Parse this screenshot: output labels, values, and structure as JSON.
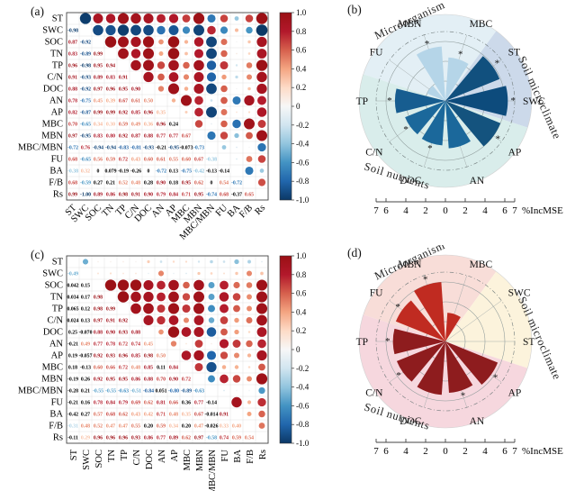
{
  "figure": {
    "panel_tags": {
      "a": "(a)",
      "b": "(b)",
      "c": "(c)",
      "d": "(d)"
    }
  },
  "diverging_stops": [
    "#0b3866",
    "#2166ac",
    "#4393c3",
    "#92c5de",
    "#d1e5f0",
    "#f7f7f7",
    "#fddbc7",
    "#f4a582",
    "#d6604d",
    "#b2182b",
    "#9a1014"
  ],
  "chart_data": [
    {
      "panel": "a",
      "type": "heatmap",
      "subtype": "pearson-correlation-matrix",
      "variables": [
        "ST",
        "SWC",
        "SOC",
        "TN",
        "TP",
        "C/N",
        "DOC",
        "AN",
        "AP",
        "MBC",
        "MBN",
        "MBC/MBN",
        "FU",
        "BA",
        "F/B",
        "Rs"
      ],
      "values_lower_triangle": [
        [],
        [
          "-0.98"
        ],
        [
          "0.87",
          "-0.92"
        ],
        [
          "0.83",
          "-0.89",
          "0.99"
        ],
        [
          "0.96",
          "-0.98",
          "0.95",
          "0.94"
        ],
        [
          "0.91",
          "-0.93",
          "0.89",
          "0.83",
          "0.91"
        ],
        [
          "0.88",
          "-0.92",
          "0.97",
          "0.96",
          "0.95",
          "0.90"
        ],
        [
          "0.78",
          "-0.75",
          "0.45",
          "0.39",
          "0.67",
          "0.61",
          "0.50"
        ],
        [
          "0.82",
          "-0.87",
          "0.99",
          "0.99",
          "0.92",
          "0.85",
          "0.96",
          "0.35"
        ],
        [
          "0.70",
          "-0.65",
          "0.34",
          "0.30",
          "0.59",
          "0.49",
          "0.36",
          "0.96",
          "0.24"
        ],
        [
          "0.97",
          "-0.95",
          "0.83",
          "0.80",
          "0.92",
          "0.87",
          "0.88",
          "0.77",
          "0.77",
          "0.67"
        ],
        [
          "-0.72",
          "0.76",
          "-0.94",
          "-0.94",
          "-0.83",
          "-0.81",
          "-0.93",
          "-0.21",
          "-0.95",
          "-0.073",
          "-0.73"
        ],
        [
          "0.68",
          "-0.65",
          "0.56",
          "0.59",
          "0.72",
          "0.43",
          "0.60",
          "0.61",
          "0.55",
          "0.60",
          "0.67",
          "-0.38"
        ],
        [
          "-0.38",
          "0.32",
          "0",
          "0.079",
          "-0.19",
          "-0.26",
          "0",
          "-0.72",
          "0.13",
          "-0.75",
          "-0.42",
          "-0.13",
          "-0.14"
        ],
        [
          "0.68",
          "-0.59",
          "0.27",
          "0.21",
          "0.52",
          "0.48",
          "0.28",
          "0.90",
          "0.18",
          "0.95",
          "0.62",
          "0",
          "0.54",
          "-0.72"
        ],
        [
          "0.99",
          "-1.00",
          "0.89",
          "0.86",
          "0.98",
          "0.91",
          "0.90",
          "0.79",
          "0.84",
          "0.71",
          "0.95",
          "-0.74",
          "0.68",
          "-0.37",
          "0.65"
        ]
      ],
      "not_significant_black_cells": [
        [
          9,
          8
        ],
        [
          11,
          7
        ],
        [
          11,
          9
        ],
        [
          13,
          2
        ],
        [
          13,
          3
        ],
        [
          13,
          4
        ],
        [
          13,
          5
        ],
        [
          13,
          6
        ],
        [
          13,
          8
        ],
        [
          13,
          11
        ],
        [
          13,
          12
        ],
        [
          14,
          2
        ],
        [
          14,
          3
        ],
        [
          14,
          6
        ],
        [
          14,
          8
        ],
        [
          14,
          11
        ],
        [
          15,
          13
        ]
      ],
      "colorbar_tick_labels": [
        "1.0",
        "0.8",
        "0.6",
        "0.4",
        "0.2",
        "0",
        "-0.2",
        "-0.4",
        "-0.6",
        "-0.8",
        "-1.0"
      ],
      "x_tick_rotation_deg": 45
    },
    {
      "panel": "b",
      "type": "bar",
      "subtype": "polar-rose",
      "axis_label": "%IncMSE",
      "radial_axis": {
        "tick_values": [
          -7,
          -6,
          -4,
          -2,
          0,
          2,
          4,
          6,
          7
        ],
        "tick_labels": [
          "7",
          "6",
          "4",
          "2",
          "0",
          "2",
          "4",
          "6",
          "7"
        ],
        "rmax": 7
      },
      "groups": [
        {
          "name": "Microorganism",
          "bg_color": "#e3eff5",
          "from_deg": 198,
          "to_deg": 306
        },
        {
          "name": "Soil microclimate",
          "bg_color": "#ccd9ea",
          "from_deg": 306,
          "to_deg": 378
        },
        {
          "name": "Soil nutrients",
          "bg_color": "#d9edeb",
          "from_deg": 18,
          "to_deg": 198
        }
      ],
      "wedges": [
        {
          "label": "SWC",
          "deg": 0,
          "value": 6.3,
          "color": "#0d4b7c",
          "significant": true
        },
        {
          "label": "AP",
          "deg": 36,
          "value": 6.0,
          "color": "#14537e",
          "significant": true
        },
        {
          "label": "AN",
          "deg": 72,
          "value": 4.8,
          "color": "#1b689b",
          "significant": false
        },
        {
          "label": "DOC",
          "deg": 108,
          "value": 4.5,
          "color": "#1b689b",
          "significant": true
        },
        {
          "label": "C/N",
          "deg": 144,
          "value": 4.4,
          "color": "#1b689b",
          "significant": true
        },
        {
          "label": "TP",
          "deg": 180,
          "value": 5.1,
          "color": "#175d90",
          "significant": true
        },
        {
          "label": "FU",
          "deg": 216,
          "value": 2.0,
          "color": "#b5d5e8",
          "significant": false
        },
        {
          "label": "MBN",
          "deg": 252,
          "value": 5.5,
          "color": "#b5d5e8",
          "significant": true
        },
        {
          "label": "MBC",
          "deg": 288,
          "value": 4.4,
          "color": "#b5d5e8",
          "significant": true
        },
        {
          "label": "ST",
          "deg": 324,
          "value": 5.9,
          "color": "#11507e",
          "significant": true
        }
      ]
    },
    {
      "panel": "c",
      "type": "heatmap",
      "subtype": "pearson-correlation-matrix",
      "variables": [
        "ST",
        "SWC",
        "SOC",
        "TN",
        "TP",
        "C/N",
        "DOC",
        "AN",
        "AP",
        "MBC",
        "MBN",
        "MBC/MBN",
        "FU",
        "BA",
        "F/B",
        "Rs"
      ],
      "values_lower_triangle": [
        [],
        [
          "-0.49"
        ],
        [
          "0.042",
          "0.15"
        ],
        [
          "0.034",
          "0.17",
          "0.98"
        ],
        [
          "0.065",
          "0.12",
          "0.98",
          "0.99"
        ],
        [
          "0.024",
          "0.13",
          "0.97",
          "0.91",
          "0.92"
        ],
        [
          "0.25",
          "-0.070",
          "0.88",
          "0.90",
          "0.93",
          "0.88"
        ],
        [
          "-0.21",
          "0.49",
          "0.77",
          "0.78",
          "0.72",
          "0.74",
          "0.45"
        ],
        [
          "0.19",
          "-0.057",
          "0.92",
          "0.93",
          "0.96",
          "0.85",
          "0.98",
          "0.50"
        ],
        [
          "0.18",
          "-0.13",
          "0.60",
          "0.66",
          "0.72",
          "0.48",
          "0.85",
          "0.11",
          "0.84"
        ],
        [
          "-0.19",
          "0.26",
          "0.92",
          "0.95",
          "0.95",
          "0.86",
          "0.88",
          "0.70",
          "0.90",
          "0.72"
        ],
        [
          "-0.28",
          "0.21",
          "-0.55",
          "-0.55",
          "-0.63",
          "-0.51",
          "-0.84",
          "0.051",
          "-0.80",
          "-0.89",
          "-0.63"
        ],
        [
          "-0.21",
          "0.16",
          "0.78",
          "0.84",
          "0.79",
          "0.69",
          "0.62",
          "0.81",
          "0.66",
          "0.36",
          "0.77",
          "-0.14"
        ],
        [
          "-0.42",
          "0.27",
          "0.57",
          "0.68",
          "0.62",
          "0.43",
          "0.42",
          "0.71",
          "0.48",
          "0.35",
          "0.67",
          "-0.014",
          "0.91"
        ],
        [
          "-0.31",
          "0.48",
          "0.52",
          "0.47",
          "0.47",
          "0.55",
          "0.20",
          "0.59",
          "0.34",
          "0.20",
          "0.47",
          "-0.026",
          "0.33",
          "0.40"
        ],
        [
          "-0.11",
          "0.29",
          "0.96",
          "0.96",
          "0.96",
          "0.93",
          "0.86",
          "0.77",
          "0.89",
          "0.62",
          "0.97",
          "-0.58",
          "0.74",
          "0.59",
          "0.54"
        ]
      ],
      "not_significant_black_cells": [
        [
          2,
          0
        ],
        [
          2,
          1
        ],
        [
          3,
          0
        ],
        [
          3,
          1
        ],
        [
          4,
          0
        ],
        [
          4,
          1
        ],
        [
          5,
          0
        ],
        [
          5,
          1
        ],
        [
          6,
          0
        ],
        [
          6,
          1
        ],
        [
          7,
          0
        ],
        [
          8,
          0
        ],
        [
          8,
          1
        ],
        [
          9,
          0
        ],
        [
          9,
          1
        ],
        [
          9,
          7
        ],
        [
          10,
          0
        ],
        [
          10,
          1
        ],
        [
          11,
          0
        ],
        [
          11,
          1
        ],
        [
          11,
          7
        ],
        [
          12,
          0
        ],
        [
          12,
          1
        ],
        [
          12,
          9
        ],
        [
          12,
          11
        ],
        [
          13,
          0
        ],
        [
          13,
          1
        ],
        [
          13,
          11
        ],
        [
          14,
          6
        ],
        [
          14,
          9
        ],
        [
          14,
          11
        ],
        [
          15,
          0
        ]
      ],
      "colorbar_tick_labels": [
        "1.0",
        "0.8",
        "0.6",
        "0.4",
        "0.2",
        "0",
        "-0.2",
        "-0.4",
        "-0.6",
        "-0.8",
        "-1.0"
      ],
      "x_tick_rotation_deg": 90
    },
    {
      "panel": "d",
      "type": "bar",
      "subtype": "polar-rose",
      "axis_label": "%IncMSE",
      "radial_axis": {
        "tick_values": [
          -7,
          -6,
          -4,
          -2,
          0,
          2,
          4,
          6,
          7
        ],
        "tick_labels": [
          "7",
          "6",
          "4",
          "2",
          "0",
          "2",
          "4",
          "6",
          "7"
        ],
        "rmax": 7
      },
      "groups": [
        {
          "name": "Microorganism",
          "bg_color": "#f8ddd8",
          "from_deg": 198,
          "to_deg": 306
        },
        {
          "name": "Soil microclimate",
          "bg_color": "#fcf3dc",
          "from_deg": 306,
          "to_deg": 378
        },
        {
          "name": "Soil nutrients",
          "bg_color": "#f6d7de",
          "from_deg": 18,
          "to_deg": 198
        }
      ],
      "wedges": [
        {
          "label": "ST",
          "deg": 0,
          "value": 0,
          "color": "#8e1c1e",
          "significant": false
        },
        {
          "label": "AP",
          "deg": 36,
          "value": 5.7,
          "color": "#8e1c1e",
          "significant": true
        },
        {
          "label": "AN",
          "deg": 72,
          "value": 5.2,
          "color": "#8e1c1e",
          "significant": true
        },
        {
          "label": "DOC",
          "deg": 108,
          "value": 5.4,
          "color": "#8e1c1e",
          "significant": false
        },
        {
          "label": "C/N",
          "deg": 144,
          "value": 5.3,
          "color": "#8e1c1e",
          "significant": true
        },
        {
          "label": "TP",
          "deg": 180,
          "value": 5.3,
          "color": "#8e1c1e",
          "significant": true
        },
        {
          "label": "FU",
          "deg": 216,
          "value": 5.4,
          "color": "#c02b21",
          "significant": true
        },
        {
          "label": "MBN",
          "deg": 252,
          "value": 6.0,
          "color": "#c02b21",
          "significant": true
        },
        {
          "label": "MBC",
          "deg": 288,
          "value": 2.9,
          "color": "#c02b21",
          "significant": false
        },
        {
          "label": "SWC",
          "deg": 324,
          "value": 0,
          "color": "#c02b21",
          "significant": false
        }
      ]
    }
  ]
}
